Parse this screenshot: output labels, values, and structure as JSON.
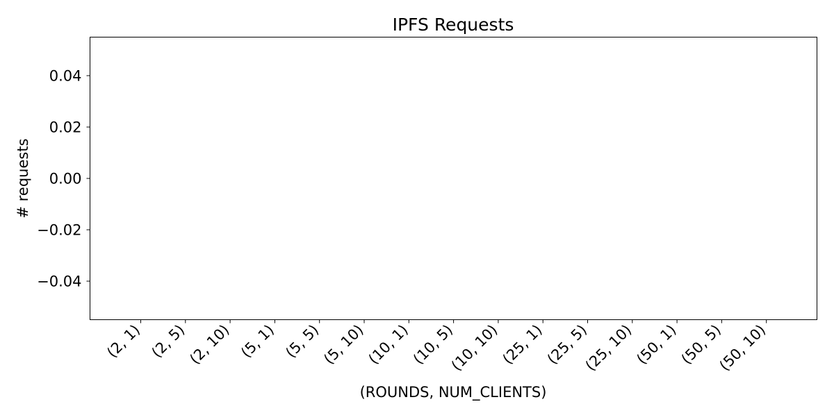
{
  "chart_data": {
    "type": "bar",
    "title": "IPFS Requests",
    "xlabel": "(ROUNDS, NUM_CLIENTS)",
    "ylabel": "# requests",
    "categories": [
      "(2, 1)",
      "(2, 5)",
      "(2, 10)",
      "(5, 1)",
      "(5, 5)",
      "(5, 10)",
      "(10, 1)",
      "(10, 5)",
      "(10, 10)",
      "(25, 1)",
      "(25, 5)",
      "(25, 10)",
      "(50, 1)",
      "(50, 5)",
      "(50, 10)"
    ],
    "values": [
      0,
      0,
      0,
      0,
      0,
      0,
      0,
      0,
      0,
      0,
      0,
      0,
      0,
      0,
      0
    ],
    "ylim": [
      -0.055,
      0.055
    ],
    "yticks": [
      -0.04,
      -0.02,
      0.0,
      0.02,
      0.04
    ],
    "ytick_labels": [
      "−0.04",
      "−0.02",
      "0.00",
      "0.02",
      "0.04"
    ],
    "x_tick_rotation": 45,
    "grid": false,
    "legend": "none",
    "colors": {
      "axis": "#000000",
      "bar": "#1f77b4",
      "background": "#ffffff"
    }
  }
}
